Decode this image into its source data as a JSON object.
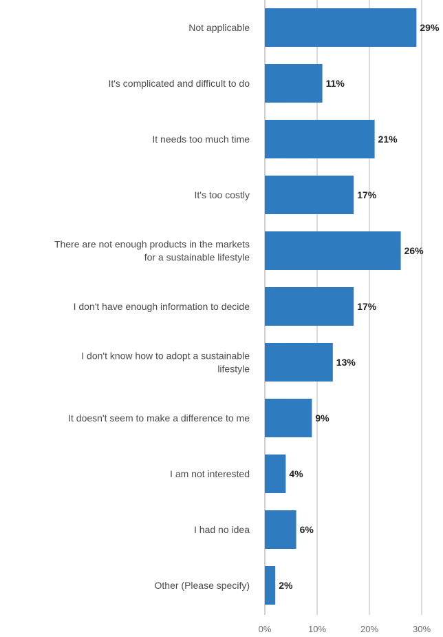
{
  "chart_data": {
    "type": "bar",
    "orientation": "horizontal",
    "categories": [
      [
        "Not applicable"
      ],
      [
        "It's complicated and difficult to do"
      ],
      [
        "It needs too much time"
      ],
      [
        "It's too costly"
      ],
      [
        "There are not enough products in the markets",
        "for a sustainable lifestyle"
      ],
      [
        "I don't have enough information to decide"
      ],
      [
        "I don't know how to adopt a sustainable",
        "lifestyle"
      ],
      [
        "It doesn't seem to make a difference to me"
      ],
      [
        "I am not interested"
      ],
      [
        "I had no idea"
      ],
      [
        "Other (Please specify)"
      ]
    ],
    "values": [
      29,
      11,
      21,
      17,
      26,
      17,
      13,
      9,
      4,
      6,
      2
    ],
    "value_labels": [
      "29%",
      "11%",
      "21%",
      "17%",
      "26%",
      "17%",
      "13%",
      "9%",
      "4%",
      "6%",
      "2%"
    ],
    "xlim": [
      0,
      30
    ],
    "ticks": [
      0,
      10,
      20,
      30
    ],
    "tick_labels": [
      "0%",
      "10%",
      "20%",
      "30%"
    ],
    "grid": true,
    "bar_color": "#2e7bbf"
  }
}
